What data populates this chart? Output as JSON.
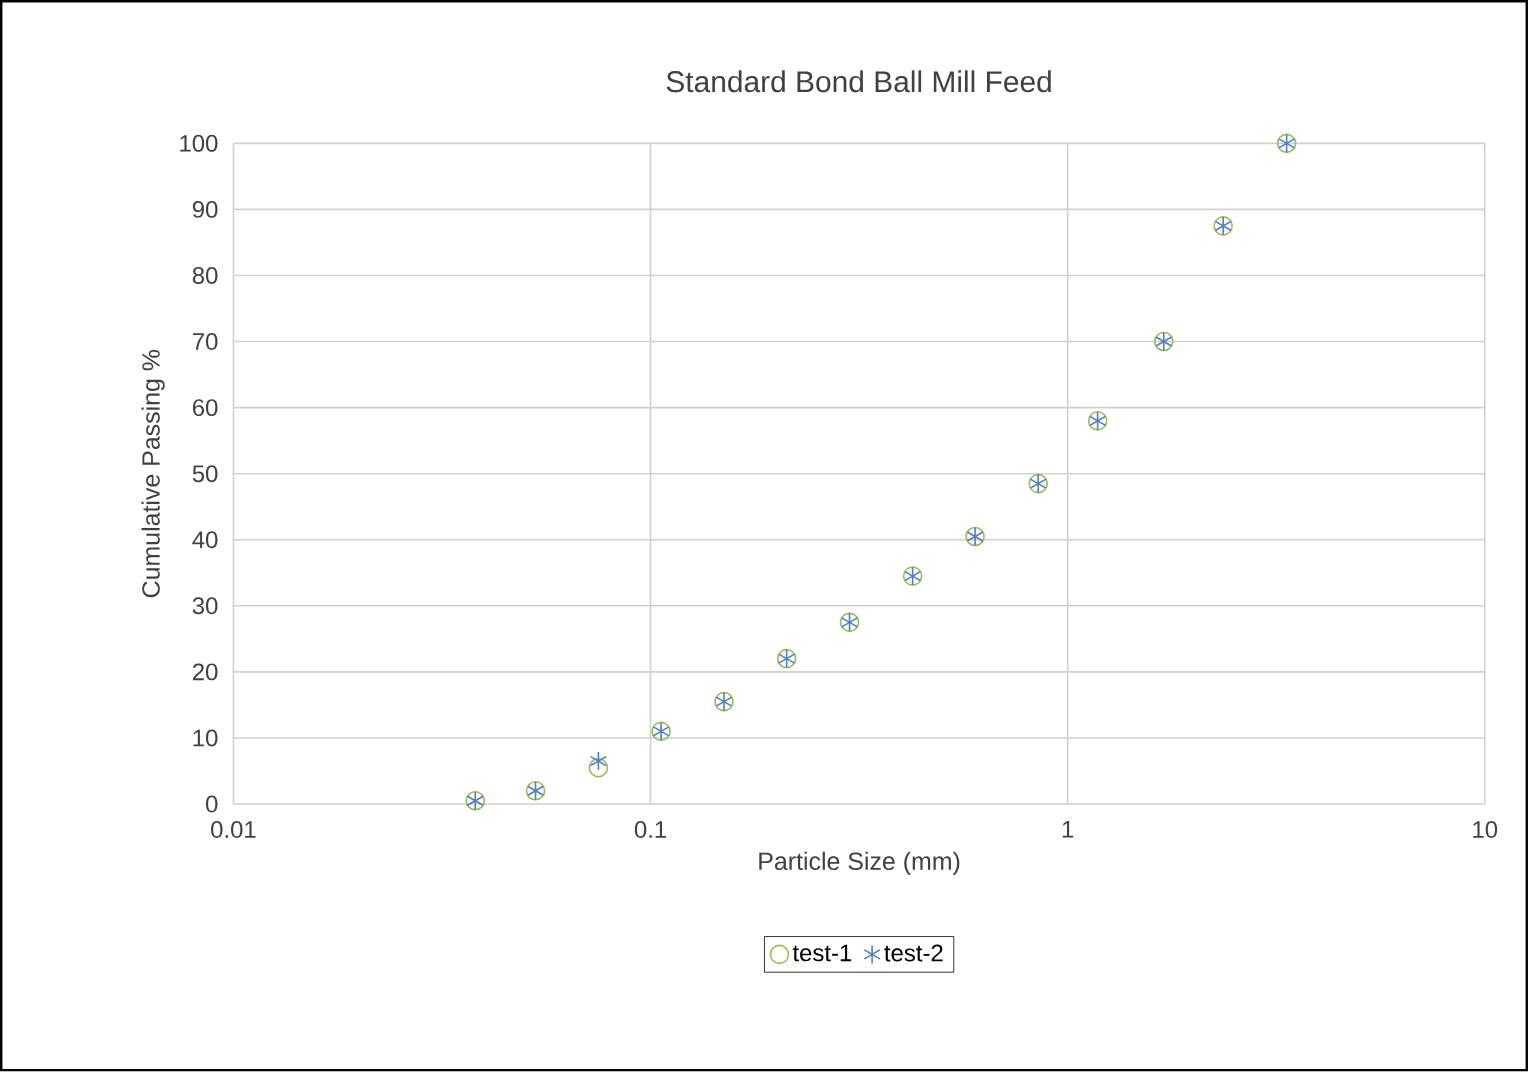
{
  "chart_data": {
    "type": "scatter",
    "title": "Standard Bond Ball Mill Feed",
    "xlabel": "Particle Size (mm)",
    "ylabel": "Cumulative  Passing %",
    "log": "x",
    "xlim": [
      0.01,
      10
    ],
    "xticks": [
      0.01,
      0.1,
      1,
      10
    ],
    "ylim": [
      0,
      100
    ],
    "yticks": [
      0,
      10,
      20,
      30,
      40,
      50,
      60,
      70,
      80,
      90,
      100
    ],
    "grid": true,
    "legend": "bottom",
    "x": [
      0.038,
      0.053,
      0.075,
      0.106,
      0.15,
      0.212,
      0.3,
      0.425,
      0.6,
      0.85,
      1.18,
      1.7,
      2.36,
      3.35
    ],
    "series": [
      {
        "name": "test-1",
        "color": "#9bbb59",
        "marker": "circle",
        "values": [
          0.5,
          2,
          5.5,
          11,
          15.5,
          22,
          27.5,
          34.5,
          40.5,
          48.5,
          58,
          70,
          87.5,
          100
        ]
      },
      {
        "name": "test-2",
        "color": "#4f81bd",
        "marker": "cross",
        "values": [
          0.5,
          2,
          6.5,
          11,
          15.5,
          22,
          27.5,
          34.5,
          40.5,
          48.5,
          58,
          70,
          87.5,
          100
        ]
      }
    ]
  }
}
